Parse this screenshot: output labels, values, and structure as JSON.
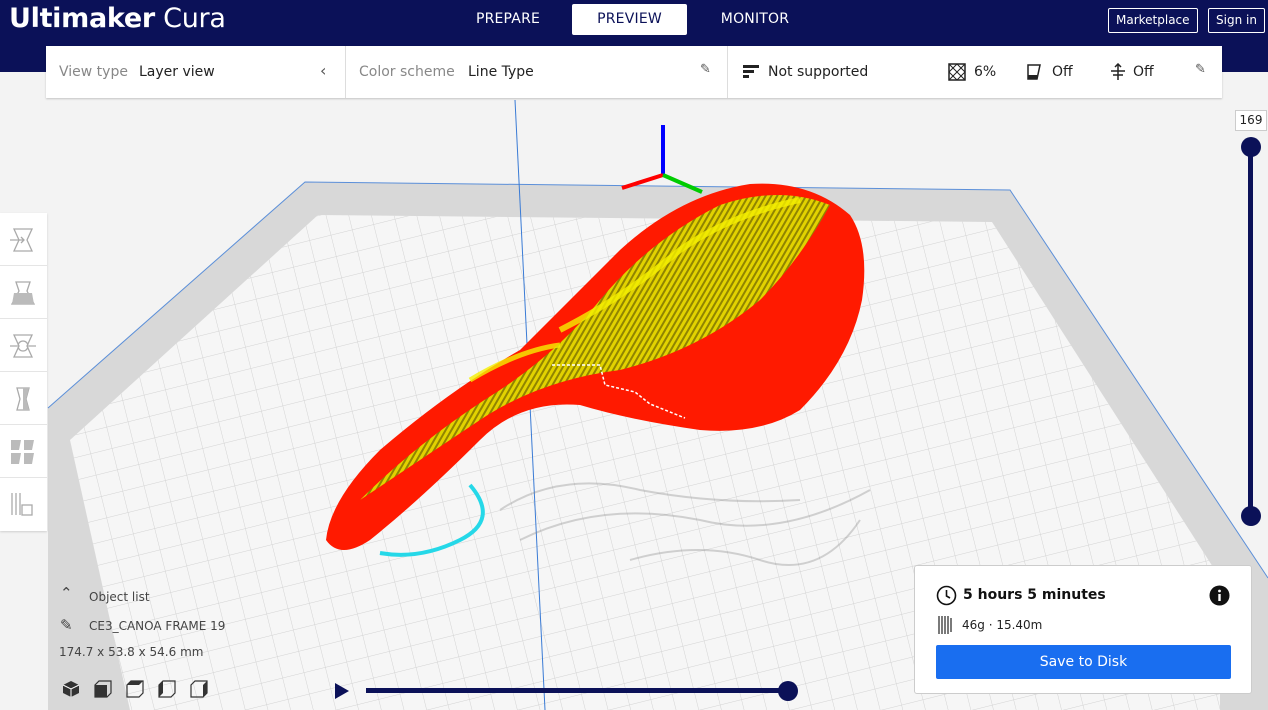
{
  "header": {
    "logo_bold": "Ultimaker",
    "logo_light": "Cura",
    "tabs": [
      {
        "label": "PREPARE"
      },
      {
        "label": "PREVIEW"
      },
      {
        "label": "MONITOR"
      }
    ],
    "active_tab": "PREVIEW",
    "marketplace_label": "Marketplace",
    "signin_label": "Sign in"
  },
  "toolbar": {
    "view_type_label": "View type",
    "view_type_value": "Layer view",
    "color_scheme_label": "Color scheme",
    "color_scheme_value": "Line Type",
    "support_value": "Not supported",
    "infill_value": "6%",
    "adhesion_value": "Off",
    "support_off_value": "Off"
  },
  "layer_slider": {
    "current_layer": "169"
  },
  "object_list": {
    "header_label": "Object list",
    "object_name": "CE3_CANOA FRAME 19",
    "dimensions": "174.7 x 53.8 x 54.6 mm"
  },
  "print_info": {
    "time": "5 hours 5 minutes",
    "material": "46g · 15.40m",
    "save_label": "Save to Disk"
  },
  "colors": {
    "header_bg": "#0b1158",
    "accent_blue": "#196ef0",
    "wall_red": "#ff1a00",
    "infill_yellow": "#f0f000"
  }
}
